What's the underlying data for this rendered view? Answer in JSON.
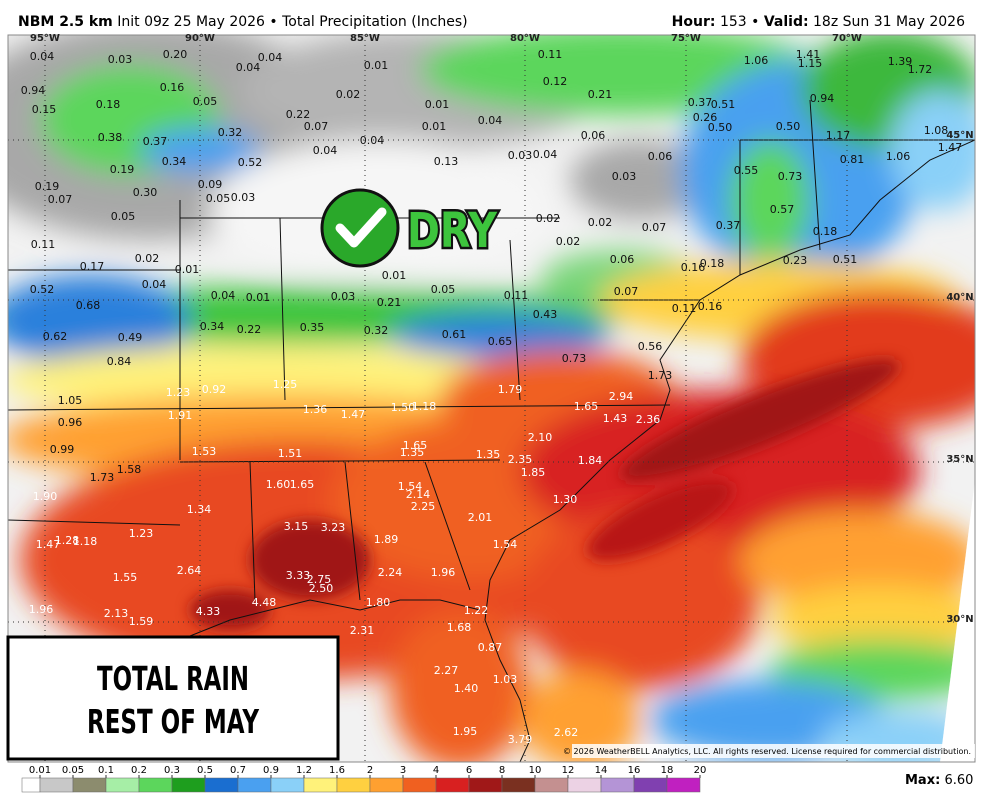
{
  "header": {
    "model": "NBM 2.5 km",
    "init": "Init 09z 25 May 2026 • Total Precipitation (Inches)",
    "hour_label": "Hour:",
    "hour": "153 •",
    "valid_label": "Valid:",
    "valid": "18z Sun 31 May 2026"
  },
  "map": {
    "longitude_labels": [
      "95°W",
      "90°W",
      "85°W",
      "80°W",
      "75°W",
      "70°W"
    ],
    "latitude_labels": [
      "45°N",
      "40°N",
      "35°N",
      "30°N"
    ],
    "point_values": [
      "0.04",
      "0.03",
      "0.20",
      "0.04",
      "0.04",
      "0.01",
      "0.11",
      "0.12",
      "0.94",
      "0.15",
      "0.18",
      "0.16",
      "0.05",
      "0.02",
      "0.01",
      "0.04",
      "0.21",
      "0.37",
      "0.51",
      "0.26",
      "0.50",
      "1.06",
      "1.41",
      "1.15",
      "1.39",
      "1.72",
      "0.94",
      "0.50",
      "1.17",
      "1.08",
      "1.47",
      "0.81",
      "1.06",
      "0.38",
      "0.37",
      "0.32",
      "0.22",
      "0.07",
      "0.04",
      "0.01",
      "0.04",
      "0.13",
      "0.03",
      "0.04",
      "0.06",
      "0.06",
      "0.03",
      "0.34",
      "0.52",
      "0.19",
      "0.55",
      "0.73",
      "0.19",
      "0.07",
      "0.30",
      "0.09",
      "0.05",
      "0.03",
      "0.05",
      "0.57",
      "0.02",
      "0.02",
      "0.07",
      "0.37",
      "0.11",
      "0.02",
      "0.18",
      "0.02",
      "0.06",
      "0.23",
      "0.51",
      "0.17",
      "0.01",
      "0.01",
      "0.16",
      "0.18",
      "0.52",
      "0.04",
      "0.04",
      "0.01",
      "0.03",
      "0.05",
      "0.07",
      "0.68",
      "0.21",
      "0.11",
      "0.11",
      "0.16",
      "0.43",
      "0.34",
      "0.22",
      "0.35",
      "0.32",
      "0.61",
      "0.62",
      "0.49",
      "0.65",
      "0.56",
      "0.84",
      "0.73",
      "1.73",
      "1.25",
      "1.23",
      "0.92",
      "1.79",
      "2.94",
      "1.05",
      "1.36",
      "1.47",
      "1.50",
      "1.18",
      "1.65",
      "1.91",
      "0.96",
      "1.43",
      "2.36",
      "2.10",
      "1.65",
      "1.35",
      "1.53",
      "1.51",
      "1.35",
      "0.99",
      "2.35",
      "1.84",
      "1.85",
      "1.58",
      "1.73",
      "1.60",
      "1.65",
      "1.54",
      "2.14",
      "2.25",
      "1.30",
      "1.90",
      "1.34",
      "2.01",
      "3.15",
      "3.23",
      "1.23",
      "1.89",
      "1.54",
      "1.47",
      "1.28",
      "1.18",
      "2.64",
      "3.33",
      "2.75",
      "2.50",
      "2.24",
      "1.96",
      "1.55",
      "1.96",
      "2.13",
      "4.33",
      "4.48",
      "1.80",
      "1.22",
      "1.59",
      "2.31",
      "1.68",
      "0.87",
      "2.27",
      "1.03",
      "1.40",
      "1.95",
      "3.79",
      "2.62"
    ]
  },
  "overlay": {
    "badge": "DRY",
    "caption": [
      "TOTAL RAIN",
      "REST OF MAY"
    ]
  },
  "legend": {
    "ticks": [
      0.01,
      0.05,
      0.1,
      0.2,
      0.3,
      0.5,
      0.7,
      0.9,
      1.2,
      1.6,
      2,
      3,
      4,
      6,
      8,
      10,
      12,
      14,
      16,
      18,
      20
    ],
    "colors": [
      "#ffffff",
      "#c8c8c8",
      "#8c8c6e",
      "#a6eea6",
      "#5cd65c",
      "#1e9e1e",
      "#1a6ed0",
      "#4aa0f0",
      "#8ad0f8",
      "#fff27a",
      "#ffd040",
      "#ffa030",
      "#f06020",
      "#d82020",
      "#a01818",
      "#7a3020",
      "#c49090",
      "#ecd2e4",
      "#b494d6",
      "#8040b0",
      "#c020c0"
    ]
  },
  "footer": {
    "copyright": "© 2026 WeatherBELL Analytics, LLC. All rights reserved. License required for commercial distribution.",
    "max_label": "Max:",
    "max_value": "6.60"
  }
}
